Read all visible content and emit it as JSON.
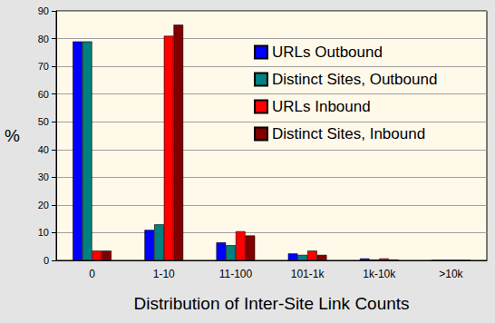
{
  "chart_data": {
    "type": "bar",
    "x_label": "Distribution of Inter-Site Link Counts",
    "y_label": "%",
    "categories": [
      "0",
      "1-10",
      "11-100",
      "101-1k",
      "1k-10k",
      ">10k"
    ],
    "series": [
      {
        "name": "URLs Outbound",
        "color": "#0000ff",
        "values": [
          79,
          11,
          6.5,
          2.5,
          0.7,
          0
        ]
      },
      {
        "name": "Distinct Sites, Outbound",
        "color": "#008080",
        "values": [
          79,
          13,
          5.5,
          2,
          0.3,
          0
        ]
      },
      {
        "name": "URLs Inbound",
        "color": "#ff0000",
        "values": [
          3.5,
          81,
          10.5,
          3.5,
          0.7,
          0
        ]
      },
      {
        "name": "Distinct Sites, Inbound",
        "color": "#800000",
        "values": [
          3.5,
          85,
          9,
          2,
          0.3,
          0
        ]
      }
    ],
    "ylim": [
      0,
      90
    ],
    "yticks": [
      0,
      10,
      20,
      30,
      40,
      50,
      60,
      70,
      80,
      90
    ],
    "grid": true,
    "legend": "upper right"
  }
}
